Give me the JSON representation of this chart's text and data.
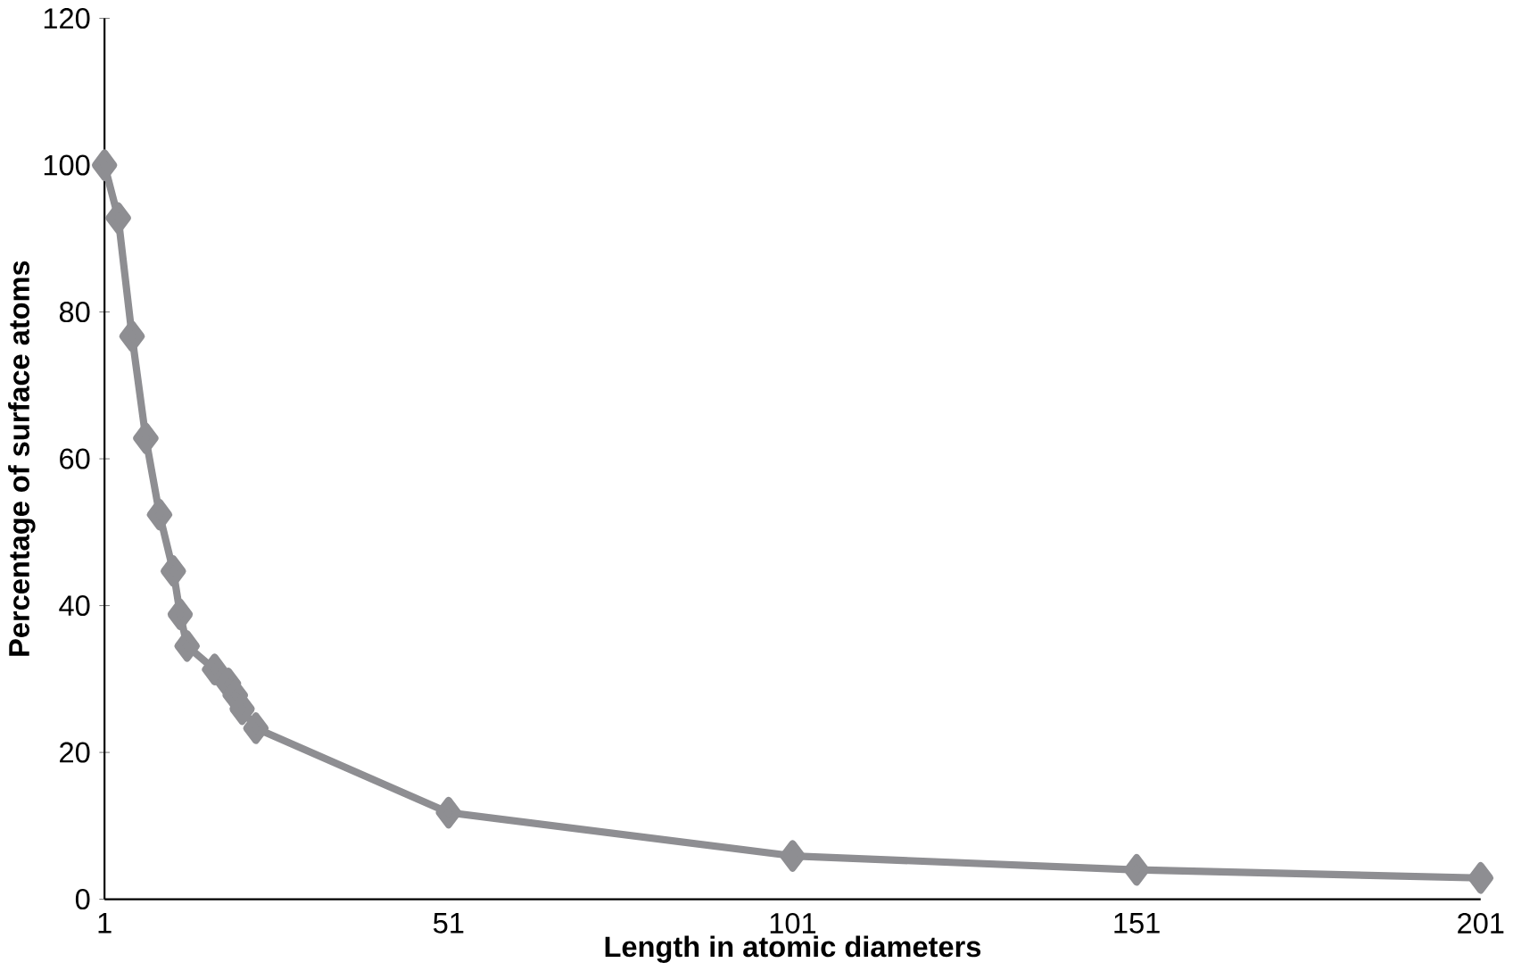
{
  "chart_data": {
    "type": "line",
    "xlabel": "Length in atomic diameters",
    "ylabel": "Percentage of surface atoms",
    "x": [
      1,
      3,
      5,
      7,
      9,
      11,
      12,
      13,
      17,
      19,
      20,
      21,
      23,
      51,
      101,
      151,
      201
    ],
    "series": [
      {
        "color": "#8e8e92",
        "values": [
          100,
          92.8,
          76.7,
          62.8,
          52.4,
          44.7,
          38.8,
          34.5,
          31.3,
          29.4,
          27.8,
          25.9,
          23.3,
          11.8,
          5.9,
          4.0,
          2.9
        ]
      }
    ],
    "xlim": [
      1,
      201
    ],
    "ylim": [
      0,
      120
    ],
    "xticks": [
      1,
      51,
      101,
      151,
      201
    ],
    "yticks": [
      0,
      20,
      40,
      60,
      80,
      100,
      120
    ],
    "marker": "diamond",
    "line_style": "solid",
    "grid": false
  }
}
